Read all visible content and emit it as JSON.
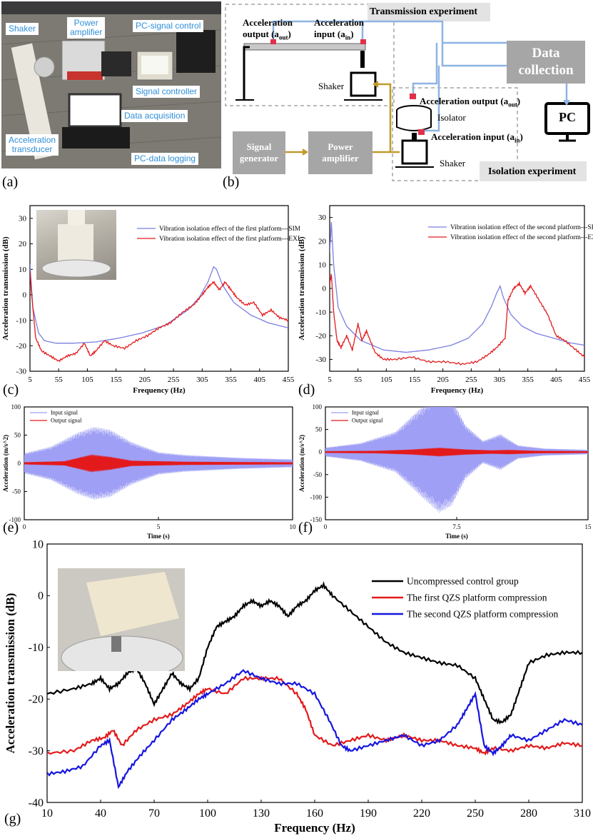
{
  "panel_a": {
    "letter": "(a)",
    "labels": {
      "shaker": "Shaker",
      "power_amplifier": "Power\namplifier",
      "pc_signal_control": "PC-signal control",
      "signal_controller": "Signal controller",
      "data_acquisition": "Data acquisition",
      "acceleration_transducer": "Acceleration\ntransducer",
      "pc_data_logging": "PC-data logging"
    }
  },
  "panel_b": {
    "letter": "(b)",
    "transmission_experiment": "Transmission experiment",
    "isolation_experiment": "Isolation experiment",
    "accel_output_top": "Acceleration",
    "accel_output_bottom": "output (a",
    "accel_output_sub": "out",
    "accel_input_top": "Acceleration",
    "accel_input_bottom": "input (a",
    "accel_input_sub": "in",
    "shaker_top": "Shaker",
    "shaker_bottom": "Shaker",
    "isolator": "Isolator",
    "iso_output": "Acceleration output (a",
    "iso_output_sub": "out",
    "iso_input": "Acceleration input (a",
    "iso_input_sub": "in",
    "data_collection": "Data\ncollection",
    "pc": "PC",
    "signal_generator": "Signal\ngenerator",
    "power_amplifier": "Power\namplifier",
    "close_paren": ")",
    "colors": {
      "box": "#a6a6a6",
      "blue_line": "#8eb4e3",
      "gold_line": "#c09a2b"
    }
  },
  "chart_data": [
    {
      "id": "c",
      "letter": "(c)",
      "type": "line",
      "xlabel": "Frequency (Hz)",
      "ylabel": "Acceleration transmission (dB)",
      "xlim": [
        5,
        455
      ],
      "ylim": [
        -30,
        35
      ],
      "xticks": [
        5,
        55,
        105,
        155,
        205,
        255,
        305,
        355,
        405,
        455
      ],
      "yticks": [
        -30,
        -20,
        -10,
        0,
        10,
        20,
        30
      ],
      "series": [
        {
          "name": "Vibration isolation effect of the first platform---SIM",
          "color": "#7b7fe0",
          "x": [
            5,
            10,
            20,
            30,
            50,
            80,
            120,
            160,
            200,
            240,
            280,
            300,
            315,
            325,
            330,
            340,
            360,
            390,
            420,
            455
          ],
          "y": [
            12,
            -5,
            -15,
            -18,
            -19,
            -19,
            -18.5,
            -17,
            -15,
            -12,
            -6,
            -1,
            5,
            11,
            10,
            4,
            -3,
            -8,
            -11,
            -13
          ]
        },
        {
          "name": "Vibration isolation effect of the first platform---EXP",
          "color": "#e31a1c",
          "x": [
            5,
            8,
            15,
            25,
            40,
            55,
            70,
            85,
            100,
            110,
            120,
            135,
            150,
            170,
            190,
            210,
            230,
            250,
            270,
            290,
            305,
            315,
            325,
            335,
            345,
            355,
            365,
            380,
            395,
            410,
            425,
            440,
            455
          ],
          "y": [
            9,
            0,
            -17,
            -22,
            -24,
            -26,
            -24,
            -23,
            -19,
            -24,
            -22,
            -18,
            -20,
            -21,
            -18,
            -16,
            -13,
            -11,
            -7,
            -4,
            0,
            3,
            5,
            2,
            5,
            2,
            -1,
            -4,
            -3,
            -8,
            -6,
            -9,
            -10
          ]
        }
      ]
    },
    {
      "id": "d",
      "letter": "(d)",
      "type": "line",
      "xlabel": "Frequency (Hz)",
      "ylabel": "Acceleration transmission (dB)",
      "xlim": [
        5,
        455
      ],
      "ylim": [
        -35,
        35
      ],
      "xticks": [
        5,
        55,
        105,
        155,
        205,
        255,
        305,
        355,
        405,
        455
      ],
      "yticks": [
        -30,
        -20,
        -10,
        0,
        10,
        20,
        30
      ],
      "series": [
        {
          "name": "Vibration isolation effect of the second platform---SIM",
          "color": "#7b7fe0",
          "x": [
            5,
            8,
            12,
            20,
            35,
            60,
            100,
            140,
            180,
            220,
            250,
            275,
            290,
            300,
            306,
            312,
            325,
            345,
            370,
            400,
            430,
            455
          ],
          "y": [
            15,
            28,
            10,
            -8,
            -16,
            -22,
            -26,
            -27,
            -26,
            -24,
            -21,
            -15,
            -8,
            -2,
            1,
            -4,
            -11,
            -16,
            -19,
            -21,
            -23,
            -24
          ]
        },
        {
          "name": "Vibration isolation effect of the second platform---EXP",
          "color": "#e31a1c",
          "x": [
            5,
            8,
            12,
            18,
            25,
            35,
            45,
            55,
            62,
            70,
            85,
            100,
            120,
            150,
            180,
            210,
            240,
            265,
            285,
            300,
            315,
            320,
            330,
            340,
            350,
            360,
            375,
            390,
            405,
            420,
            440,
            455
          ],
          "y": [
            2,
            6,
            -10,
            -22,
            -25,
            -20,
            -26,
            -15,
            -22,
            -18,
            -27,
            -30,
            -30,
            -29,
            -31,
            -31,
            -32,
            -31,
            -28,
            -25,
            -21,
            -5,
            0,
            2,
            -2,
            1,
            -5,
            -11,
            -20,
            -22,
            -26,
            -29
          ]
        }
      ]
    },
    {
      "id": "e",
      "letter": "(e)",
      "type": "line",
      "xlabel": "Time (s)",
      "ylabel": "Acceleration (m/s^2)",
      "xlim": [
        0,
        10
      ],
      "ylim": [
        -100,
        100
      ],
      "xticks": [
        0,
        5,
        10
      ],
      "yticks": [
        -100,
        -50,
        0,
        50,
        100
      ],
      "series": [
        {
          "name": "Input signal",
          "color": "#9f9ff5",
          "envelope_t": [
            0,
            1,
            2,
            2.6,
            3.2,
            4,
            5,
            6,
            8,
            10
          ],
          "envelope_a": [
            18,
            30,
            55,
            65,
            60,
            38,
            20,
            15,
            10,
            7
          ]
        },
        {
          "name": "Output signal",
          "color": "#e31a1c",
          "envelope_t": [
            0,
            1.5,
            2.5,
            3.2,
            4,
            6,
            10
          ],
          "envelope_a": [
            2,
            4,
            16,
            12,
            5,
            3,
            2
          ]
        }
      ]
    },
    {
      "id": "f",
      "letter": "(f)",
      "type": "line",
      "xlabel": "Time (s)",
      "ylabel": "Acceleration (m/s^2)",
      "xlim": [
        0,
        15
      ],
      "ylim": [
        -150,
        100
      ],
      "xticks": [
        0,
        7.5,
        15
      ],
      "yticks": [
        -150,
        -100,
        -50,
        0,
        50,
        100
      ],
      "series": [
        {
          "name": "Input signal",
          "color": "#9f9ff5",
          "envelope_t": [
            0,
            2,
            4,
            5.5,
            6.5,
            7.2,
            8,
            9,
            10,
            11,
            12.5,
            15
          ],
          "envelope_a": [
            10,
            20,
            45,
            100,
            135,
            120,
            60,
            25,
            40,
            15,
            8,
            5
          ]
        },
        {
          "name": "Output signal",
          "color": "#e31a1c",
          "envelope_t": [
            0,
            3,
            5,
            6.5,
            8,
            9.5,
            10.5,
            12,
            15
          ],
          "envelope_a": [
            2,
            3,
            6,
            10,
            6,
            4,
            5,
            3,
            2
          ]
        }
      ]
    },
    {
      "id": "g",
      "letter": "(g)",
      "type": "line",
      "xlabel": "Frequency  (Hz)",
      "ylabel": "Acceleration transmission  (dB)",
      "xlim": [
        10,
        310
      ],
      "ylim": [
        -40,
        10
      ],
      "xticks": [
        10,
        40,
        70,
        100,
        130,
        160,
        190,
        220,
        250,
        280,
        310
      ],
      "yticks": [
        -40,
        -30,
        -20,
        -10,
        0,
        10
      ],
      "series": [
        {
          "name": "Uncompressed control group",
          "color": "#000000",
          "x": [
            10,
            25,
            35,
            40,
            45,
            50,
            55,
            60,
            65,
            70,
            75,
            80,
            85,
            90,
            95,
            100,
            105,
            110,
            115,
            120,
            125,
            130,
            135,
            140,
            145,
            150,
            155,
            160,
            165,
            170,
            180,
            190,
            200,
            210,
            220,
            230,
            240,
            250,
            255,
            260,
            265,
            270,
            275,
            280,
            290,
            300,
            310
          ],
          "y": [
            -19,
            -18,
            -17,
            -16,
            -18,
            -17,
            -15,
            -14,
            -17,
            -21,
            -18,
            -15,
            -17,
            -18,
            -16,
            -10,
            -6,
            -5,
            -4,
            -2,
            -1,
            -2,
            -1,
            -2,
            -4,
            -2,
            -1,
            1,
            2,
            0,
            -3,
            -6,
            -9,
            -11,
            -12,
            -13,
            -13.5,
            -16,
            -20,
            -24,
            -24.5,
            -23,
            -18,
            -13,
            -11.5,
            -11,
            -11
          ]
        },
        {
          "name": "The first QZS platform compression",
          "color": "#e31a1c",
          "x": [
            10,
            25,
            35,
            42,
            47,
            52,
            60,
            70,
            80,
            88,
            95,
            100,
            110,
            120,
            130,
            140,
            150,
            155,
            160,
            170,
            180,
            190,
            200,
            210,
            220,
            230,
            240,
            250,
            255,
            260,
            270,
            280,
            290,
            300,
            310
          ],
          "y": [
            -30.5,
            -30,
            -28,
            -27.5,
            -26,
            -29,
            -26,
            -24,
            -23,
            -21,
            -19,
            -18,
            -19,
            -16,
            -16,
            -16,
            -19,
            -22,
            -27,
            -29,
            -28,
            -27,
            -28,
            -27,
            -28,
            -28,
            -29,
            -29.5,
            -30.5,
            -29.5,
            -30,
            -29,
            -29.5,
            -28.5,
            -29
          ]
        },
        {
          "name": "The second QZS platform compression",
          "color": "#1515e0",
          "x": [
            10,
            20,
            30,
            40,
            45,
            50,
            55,
            62,
            70,
            80,
            88,
            95,
            100,
            110,
            120,
            130,
            140,
            150,
            160,
            168,
            175,
            180,
            190,
            200,
            210,
            220,
            230,
            240,
            245,
            250,
            255,
            260,
            265,
            270,
            280,
            290,
            300,
            310
          ],
          "y": [
            -34.5,
            -34,
            -33,
            -29,
            -28,
            -37,
            -34,
            -31,
            -28,
            -24,
            -22,
            -20,
            -19,
            -17,
            -14.5,
            -16,
            -17,
            -17,
            -19,
            -24,
            -29,
            -30,
            -29,
            -28,
            -27,
            -29,
            -28,
            -25,
            -22,
            -19,
            -29,
            -30.5,
            -29,
            -27,
            -28,
            -26,
            -24,
            -25
          ]
        }
      ]
    }
  ]
}
